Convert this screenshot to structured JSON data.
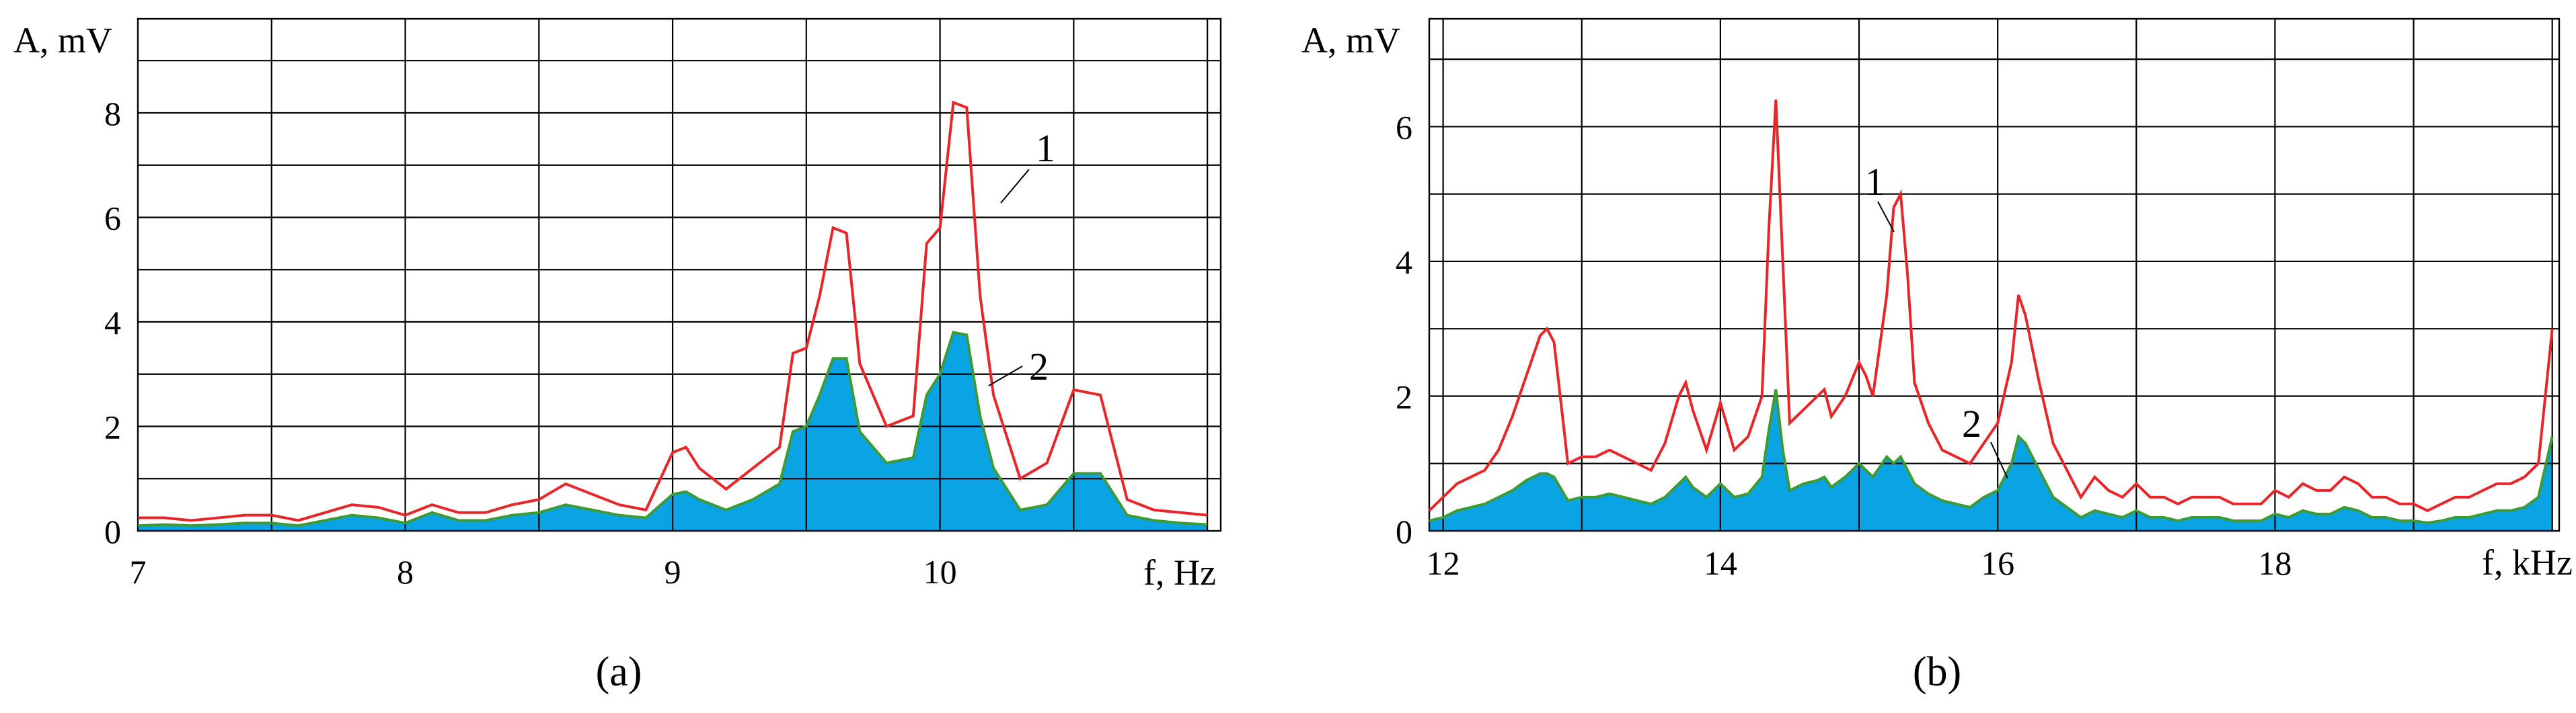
{
  "colors": {
    "series_1": "#e8262a",
    "series_2_line": "#3e9a36",
    "series_2_fill": "#0aa3e3"
  },
  "chart_data": [
    {
      "type": "line",
      "panel_label": "(a)",
      "xlabel": "f, Hz",
      "ylabel": "A, mV",
      "xlim": [
        7,
        11.05
      ],
      "ylim": [
        0,
        9.8
      ],
      "xticks": [
        7,
        8,
        9,
        10
      ],
      "yticks": [
        0,
        2,
        4,
        6,
        8
      ],
      "grid": true,
      "curve_labels": [
        "1",
        "2"
      ],
      "series": [
        {
          "x": [
            7.0,
            7.1,
            7.2,
            7.3,
            7.4,
            7.5,
            7.6,
            7.7,
            7.8,
            7.9,
            8.0,
            8.1,
            8.2,
            8.3,
            8.4,
            8.5,
            8.6,
            8.7,
            8.8,
            8.9,
            9.0,
            9.05,
            9.1,
            9.2,
            9.3,
            9.4,
            9.45,
            9.5,
            9.55,
            9.6,
            9.65,
            9.7,
            9.8,
            9.9,
            9.95,
            10.0,
            10.05,
            10.1,
            10.15,
            10.2,
            10.3,
            10.4,
            10.5,
            10.6,
            10.7,
            10.8,
            10.9,
            11.0
          ],
          "values": [
            0.25,
            0.25,
            0.2,
            0.25,
            0.3,
            0.3,
            0.2,
            0.35,
            0.5,
            0.45,
            0.3,
            0.5,
            0.35,
            0.35,
            0.5,
            0.6,
            0.9,
            0.7,
            0.5,
            0.4,
            1.5,
            1.6,
            1.2,
            0.8,
            1.2,
            1.6,
            3.4,
            3.5,
            4.5,
            5.8,
            5.7,
            3.2,
            2.0,
            2.2,
            5.5,
            5.8,
            8.2,
            8.1,
            4.5,
            2.6,
            1.0,
            1.3,
            2.7,
            2.6,
            0.6,
            0.4,
            0.35,
            0.3
          ]
        },
        {
          "x": [
            7.0,
            7.1,
            7.2,
            7.3,
            7.4,
            7.5,
            7.6,
            7.7,
            7.8,
            7.9,
            8.0,
            8.1,
            8.2,
            8.3,
            8.4,
            8.5,
            8.6,
            8.7,
            8.8,
            8.9,
            9.0,
            9.05,
            9.1,
            9.2,
            9.3,
            9.4,
            9.45,
            9.5,
            9.55,
            9.6,
            9.65,
            9.7,
            9.8,
            9.9,
            9.95,
            10.0,
            10.05,
            10.1,
            10.15,
            10.2,
            10.3,
            10.4,
            10.5,
            10.6,
            10.7,
            10.8,
            10.9,
            11.0
          ],
          "values": [
            0.1,
            0.12,
            0.1,
            0.12,
            0.15,
            0.15,
            0.1,
            0.2,
            0.3,
            0.25,
            0.15,
            0.35,
            0.2,
            0.2,
            0.3,
            0.35,
            0.5,
            0.4,
            0.3,
            0.25,
            0.7,
            0.75,
            0.6,
            0.4,
            0.6,
            0.9,
            1.9,
            2.0,
            2.6,
            3.3,
            3.3,
            1.9,
            1.3,
            1.4,
            2.6,
            3.0,
            3.8,
            3.75,
            2.2,
            1.2,
            0.4,
            0.5,
            1.1,
            1.1,
            0.3,
            0.2,
            0.15,
            0.12
          ]
        }
      ]
    },
    {
      "type": "line",
      "panel_label": "(b)",
      "xlabel": "f, kHz",
      "ylabel": "A, mV",
      "xlim": [
        11.9,
        20.05
      ],
      "ylim": [
        0,
        7.6
      ],
      "xticks": [
        12,
        14,
        16,
        18
      ],
      "yticks": [
        0,
        2,
        4,
        6
      ],
      "grid": true,
      "curve_labels": [
        "1",
        "2"
      ],
      "series": [
        {
          "x": [
            11.9,
            12.0,
            12.1,
            12.2,
            12.3,
            12.4,
            12.5,
            12.6,
            12.7,
            12.75,
            12.8,
            12.9,
            13.0,
            13.1,
            13.2,
            13.3,
            13.4,
            13.5,
            13.6,
            13.7,
            13.75,
            13.8,
            13.9,
            14.0,
            14.1,
            14.2,
            14.3,
            14.35,
            14.4,
            14.45,
            14.5,
            14.6,
            14.7,
            14.75,
            14.8,
            14.9,
            15.0,
            15.05,
            15.1,
            15.2,
            15.25,
            15.3,
            15.35,
            15.4,
            15.5,
            15.6,
            15.7,
            15.8,
            15.9,
            16.0,
            16.1,
            16.15,
            16.2,
            16.3,
            16.4,
            16.5,
            16.6,
            16.7,
            16.8,
            16.9,
            17.0,
            17.1,
            17.2,
            17.3,
            17.4,
            17.5,
            17.6,
            17.7,
            17.8,
            17.9,
            18.0,
            18.1,
            18.2,
            18.3,
            18.4,
            18.5,
            18.6,
            18.7,
            18.8,
            18.9,
            19.0,
            19.1,
            19.2,
            19.3,
            19.4,
            19.5,
            19.6,
            19.7,
            19.8,
            19.9,
            20.0
          ],
          "values": [
            0.3,
            0.5,
            0.7,
            0.8,
            0.9,
            1.2,
            1.7,
            2.3,
            2.9,
            3.0,
            2.8,
            1.0,
            1.1,
            1.1,
            1.2,
            1.1,
            1.0,
            0.9,
            1.3,
            2.0,
            2.2,
            1.8,
            1.2,
            1.9,
            1.2,
            1.4,
            2.0,
            4.5,
            6.4,
            4.0,
            1.6,
            1.8,
            2.0,
            2.1,
            1.7,
            2.0,
            2.5,
            2.3,
            2.0,
            3.5,
            4.8,
            5.0,
            3.8,
            2.2,
            1.6,
            1.2,
            1.1,
            1.0,
            1.3,
            1.6,
            2.5,
            3.5,
            3.2,
            2.2,
            1.3,
            0.9,
            0.5,
            0.8,
            0.6,
            0.5,
            0.7,
            0.5,
            0.5,
            0.4,
            0.5,
            0.5,
            0.5,
            0.4,
            0.4,
            0.4,
            0.6,
            0.5,
            0.7,
            0.6,
            0.6,
            0.8,
            0.7,
            0.5,
            0.5,
            0.4,
            0.4,
            0.3,
            0.4,
            0.5,
            0.5,
            0.6,
            0.7,
            0.7,
            0.8,
            1.0,
            3.0
          ]
        },
        {
          "x": [
            11.9,
            12.0,
            12.1,
            12.2,
            12.3,
            12.4,
            12.5,
            12.6,
            12.7,
            12.75,
            12.8,
            12.9,
            13.0,
            13.1,
            13.2,
            13.3,
            13.4,
            13.5,
            13.6,
            13.7,
            13.75,
            13.8,
            13.9,
            14.0,
            14.1,
            14.2,
            14.3,
            14.35,
            14.4,
            14.45,
            14.5,
            14.6,
            14.7,
            14.75,
            14.8,
            14.9,
            15.0,
            15.05,
            15.1,
            15.2,
            15.25,
            15.3,
            15.35,
            15.4,
            15.5,
            15.6,
            15.7,
            15.8,
            15.9,
            16.0,
            16.1,
            16.15,
            16.2,
            16.3,
            16.4,
            16.5,
            16.6,
            16.7,
            16.8,
            16.9,
            17.0,
            17.1,
            17.2,
            17.3,
            17.4,
            17.5,
            17.6,
            17.7,
            17.8,
            17.9,
            18.0,
            18.1,
            18.2,
            18.3,
            18.4,
            18.5,
            18.6,
            18.7,
            18.8,
            18.9,
            19.0,
            19.1,
            19.2,
            19.3,
            19.4,
            19.5,
            19.6,
            19.7,
            19.8,
            19.9,
            20.0
          ],
          "values": [
            0.15,
            0.2,
            0.3,
            0.35,
            0.4,
            0.5,
            0.6,
            0.75,
            0.85,
            0.85,
            0.8,
            0.45,
            0.5,
            0.5,
            0.55,
            0.5,
            0.45,
            0.4,
            0.5,
            0.7,
            0.8,
            0.65,
            0.5,
            0.7,
            0.5,
            0.55,
            0.8,
            1.5,
            2.1,
            1.2,
            0.6,
            0.7,
            0.75,
            0.8,
            0.65,
            0.8,
            1.0,
            0.9,
            0.8,
            1.1,
            1.0,
            1.1,
            0.9,
            0.7,
            0.55,
            0.45,
            0.4,
            0.35,
            0.5,
            0.6,
            1.0,
            1.4,
            1.3,
            0.9,
            0.5,
            0.35,
            0.2,
            0.3,
            0.25,
            0.2,
            0.3,
            0.2,
            0.2,
            0.15,
            0.2,
            0.2,
            0.2,
            0.15,
            0.15,
            0.15,
            0.25,
            0.2,
            0.3,
            0.25,
            0.25,
            0.35,
            0.3,
            0.2,
            0.2,
            0.15,
            0.15,
            0.12,
            0.15,
            0.2,
            0.2,
            0.25,
            0.3,
            0.3,
            0.35,
            0.5,
            1.4
          ]
        }
      ]
    }
  ]
}
